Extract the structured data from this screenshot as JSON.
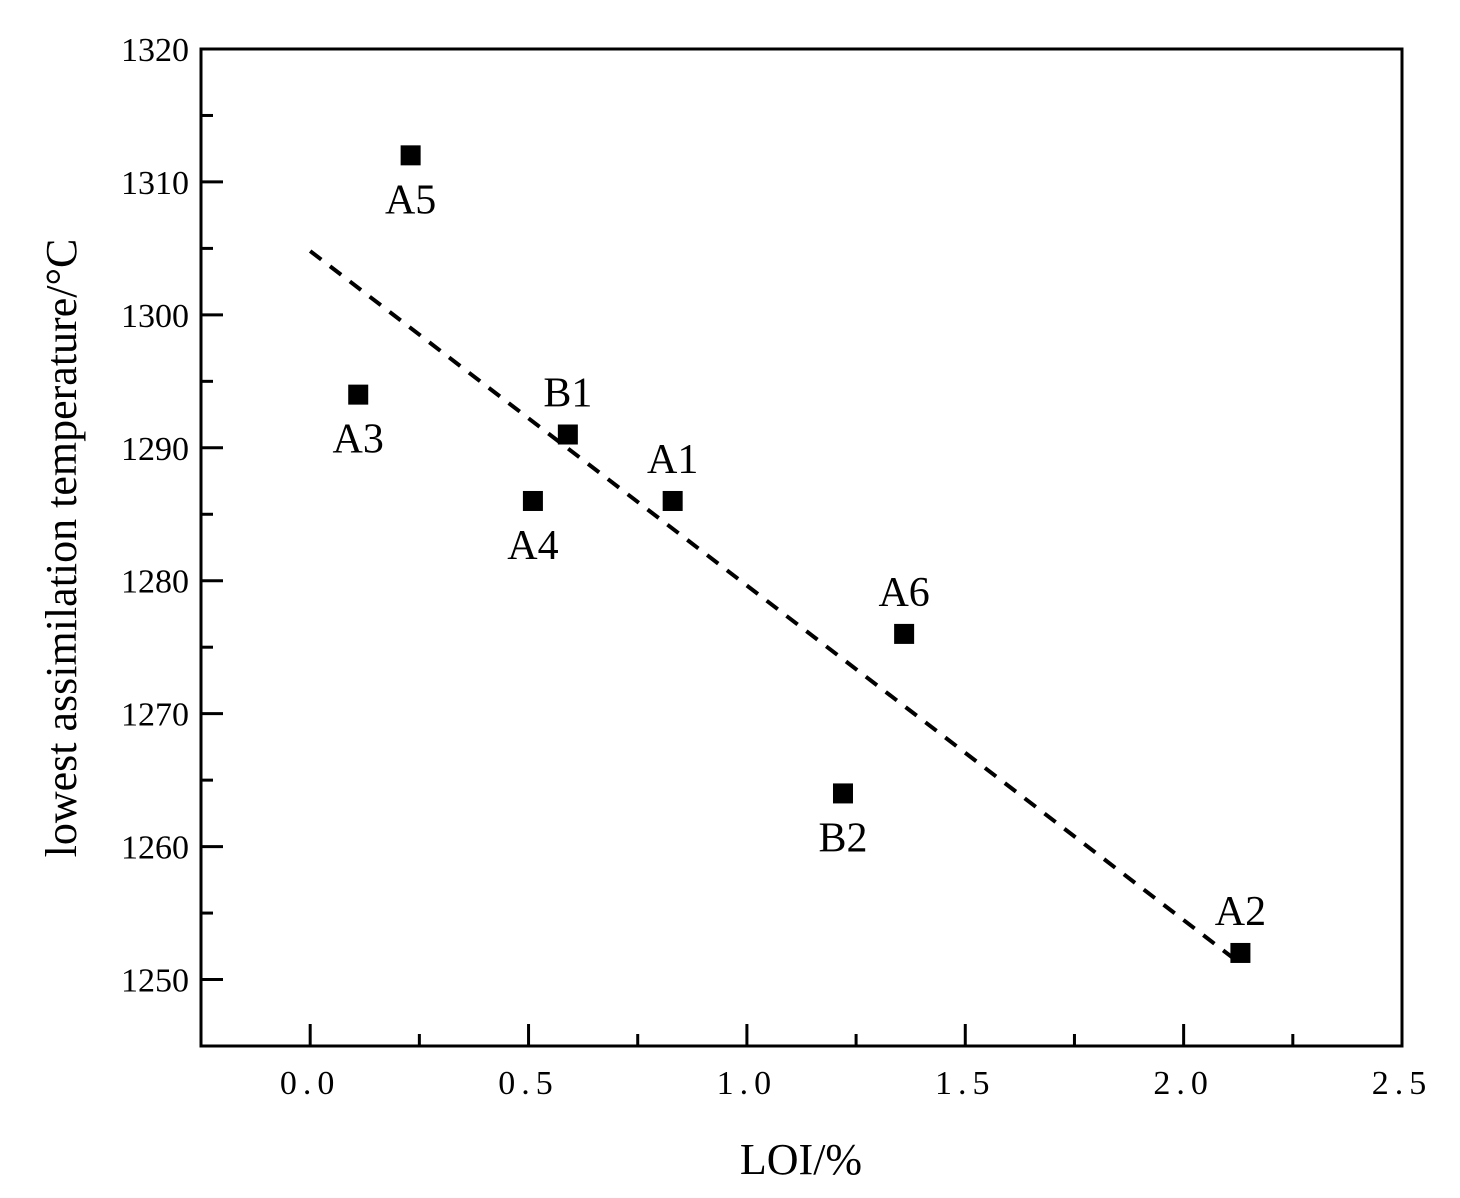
{
  "chart_data": {
    "type": "scatter",
    "xlabel": "LOI/%",
    "ylabel": "lowest assimilation temperature/°C",
    "xlim": [
      -0.25,
      2.5
    ],
    "ylim": [
      1245,
      1320
    ],
    "x_ticks": [
      0.0,
      0.5,
      1.0,
      1.5,
      2.0,
      2.5
    ],
    "x_tick_labels": [
      "0.0",
      "0.5",
      "1.0",
      "1.5",
      "2.0",
      "2.5"
    ],
    "y_ticks": [
      1250,
      1260,
      1270,
      1280,
      1290,
      1300,
      1310,
      1320
    ],
    "y_tick_labels": [
      "1250",
      "1260",
      "1270",
      "1280",
      "1290",
      "1300",
      "1310",
      "1320"
    ],
    "grid": false,
    "points": [
      {
        "label": "A1",
        "x": 0.83,
        "y": 1286,
        "label_pos": "above"
      },
      {
        "label": "A2",
        "x": 2.13,
        "y": 1252,
        "label_pos": "above"
      },
      {
        "label": "A3",
        "x": 0.11,
        "y": 1294,
        "label_pos": "below"
      },
      {
        "label": "A4",
        "x": 0.51,
        "y": 1286,
        "label_pos": "below"
      },
      {
        "label": "A5",
        "x": 0.23,
        "y": 1312,
        "label_pos": "below"
      },
      {
        "label": "A6",
        "x": 1.36,
        "y": 1276,
        "label_pos": "above"
      },
      {
        "label": "B1",
        "x": 0.59,
        "y": 1291,
        "label_pos": "above"
      },
      {
        "label": "B2",
        "x": 1.22,
        "y": 1264,
        "label_pos": "below"
      }
    ],
    "trendline": {
      "style": "dashed",
      "x": [
        0.0,
        2.13
      ],
      "y": [
        1304.8,
        1251.2
      ]
    }
  }
}
